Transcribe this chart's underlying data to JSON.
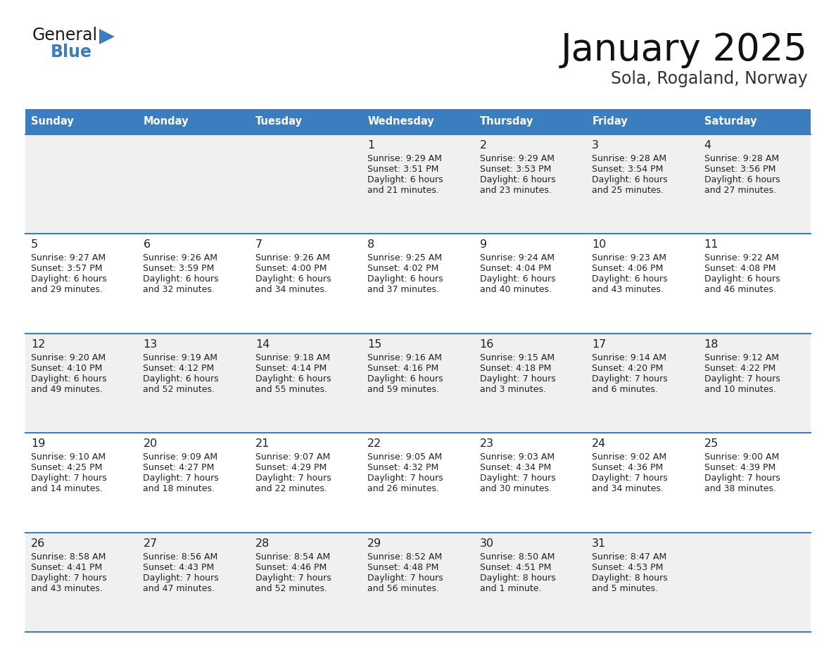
{
  "title": "January 2025",
  "subtitle": "Sola, Rogaland, Norway",
  "header_color": "#3a7ebf",
  "header_text_color": "#ffffff",
  "cell_bg_even": "#f0f0f0",
  "cell_bg_odd": "#ffffff",
  "separator_color": "#3a7ebf",
  "text_color": "#222222",
  "day_names": [
    "Sunday",
    "Monday",
    "Tuesday",
    "Wednesday",
    "Thursday",
    "Friday",
    "Saturday"
  ],
  "days": [
    {
      "day": 1,
      "col": 3,
      "row": 0,
      "sunrise": "9:29 AM",
      "sunset": "3:51 PM",
      "daylight": "6 hours",
      "daylight2": "and 21 minutes."
    },
    {
      "day": 2,
      "col": 4,
      "row": 0,
      "sunrise": "9:29 AM",
      "sunset": "3:53 PM",
      "daylight": "6 hours",
      "daylight2": "and 23 minutes."
    },
    {
      "day": 3,
      "col": 5,
      "row": 0,
      "sunrise": "9:28 AM",
      "sunset": "3:54 PM",
      "daylight": "6 hours",
      "daylight2": "and 25 minutes."
    },
    {
      "day": 4,
      "col": 6,
      "row": 0,
      "sunrise": "9:28 AM",
      "sunset": "3:56 PM",
      "daylight": "6 hours",
      "daylight2": "and 27 minutes."
    },
    {
      "day": 5,
      "col": 0,
      "row": 1,
      "sunrise": "9:27 AM",
      "sunset": "3:57 PM",
      "daylight": "6 hours",
      "daylight2": "and 29 minutes."
    },
    {
      "day": 6,
      "col": 1,
      "row": 1,
      "sunrise": "9:26 AM",
      "sunset": "3:59 PM",
      "daylight": "6 hours",
      "daylight2": "and 32 minutes."
    },
    {
      "day": 7,
      "col": 2,
      "row": 1,
      "sunrise": "9:26 AM",
      "sunset": "4:00 PM",
      "daylight": "6 hours",
      "daylight2": "and 34 minutes."
    },
    {
      "day": 8,
      "col": 3,
      "row": 1,
      "sunrise": "9:25 AM",
      "sunset": "4:02 PM",
      "daylight": "6 hours",
      "daylight2": "and 37 minutes."
    },
    {
      "day": 9,
      "col": 4,
      "row": 1,
      "sunrise": "9:24 AM",
      "sunset": "4:04 PM",
      "daylight": "6 hours",
      "daylight2": "and 40 minutes."
    },
    {
      "day": 10,
      "col": 5,
      "row": 1,
      "sunrise": "9:23 AM",
      "sunset": "4:06 PM",
      "daylight": "6 hours",
      "daylight2": "and 43 minutes."
    },
    {
      "day": 11,
      "col": 6,
      "row": 1,
      "sunrise": "9:22 AM",
      "sunset": "4:08 PM",
      "daylight": "6 hours",
      "daylight2": "and 46 minutes."
    },
    {
      "day": 12,
      "col": 0,
      "row": 2,
      "sunrise": "9:20 AM",
      "sunset": "4:10 PM",
      "daylight": "6 hours",
      "daylight2": "and 49 minutes."
    },
    {
      "day": 13,
      "col": 1,
      "row": 2,
      "sunrise": "9:19 AM",
      "sunset": "4:12 PM",
      "daylight": "6 hours",
      "daylight2": "and 52 minutes."
    },
    {
      "day": 14,
      "col": 2,
      "row": 2,
      "sunrise": "9:18 AM",
      "sunset": "4:14 PM",
      "daylight": "6 hours",
      "daylight2": "and 55 minutes."
    },
    {
      "day": 15,
      "col": 3,
      "row": 2,
      "sunrise": "9:16 AM",
      "sunset": "4:16 PM",
      "daylight": "6 hours",
      "daylight2": "and 59 minutes."
    },
    {
      "day": 16,
      "col": 4,
      "row": 2,
      "sunrise": "9:15 AM",
      "sunset": "4:18 PM",
      "daylight": "7 hours",
      "daylight2": "and 3 minutes."
    },
    {
      "day": 17,
      "col": 5,
      "row": 2,
      "sunrise": "9:14 AM",
      "sunset": "4:20 PM",
      "daylight": "7 hours",
      "daylight2": "and 6 minutes."
    },
    {
      "day": 18,
      "col": 6,
      "row": 2,
      "sunrise": "9:12 AM",
      "sunset": "4:22 PM",
      "daylight": "7 hours",
      "daylight2": "and 10 minutes."
    },
    {
      "day": 19,
      "col": 0,
      "row": 3,
      "sunrise": "9:10 AM",
      "sunset": "4:25 PM",
      "daylight": "7 hours",
      "daylight2": "and 14 minutes."
    },
    {
      "day": 20,
      "col": 1,
      "row": 3,
      "sunrise": "9:09 AM",
      "sunset": "4:27 PM",
      "daylight": "7 hours",
      "daylight2": "and 18 minutes."
    },
    {
      "day": 21,
      "col": 2,
      "row": 3,
      "sunrise": "9:07 AM",
      "sunset": "4:29 PM",
      "daylight": "7 hours",
      "daylight2": "and 22 minutes."
    },
    {
      "day": 22,
      "col": 3,
      "row": 3,
      "sunrise": "9:05 AM",
      "sunset": "4:32 PM",
      "daylight": "7 hours",
      "daylight2": "and 26 minutes."
    },
    {
      "day": 23,
      "col": 4,
      "row": 3,
      "sunrise": "9:03 AM",
      "sunset": "4:34 PM",
      "daylight": "7 hours",
      "daylight2": "and 30 minutes."
    },
    {
      "day": 24,
      "col": 5,
      "row": 3,
      "sunrise": "9:02 AM",
      "sunset": "4:36 PM",
      "daylight": "7 hours",
      "daylight2": "and 34 minutes."
    },
    {
      "day": 25,
      "col": 6,
      "row": 3,
      "sunrise": "9:00 AM",
      "sunset": "4:39 PM",
      "daylight": "7 hours",
      "daylight2": "and 38 minutes."
    },
    {
      "day": 26,
      "col": 0,
      "row": 4,
      "sunrise": "8:58 AM",
      "sunset": "4:41 PM",
      "daylight": "7 hours",
      "daylight2": "and 43 minutes."
    },
    {
      "day": 27,
      "col": 1,
      "row": 4,
      "sunrise": "8:56 AM",
      "sunset": "4:43 PM",
      "daylight": "7 hours",
      "daylight2": "and 47 minutes."
    },
    {
      "day": 28,
      "col": 2,
      "row": 4,
      "sunrise": "8:54 AM",
      "sunset": "4:46 PM",
      "daylight": "7 hours",
      "daylight2": "and 52 minutes."
    },
    {
      "day": 29,
      "col": 3,
      "row": 4,
      "sunrise": "8:52 AM",
      "sunset": "4:48 PM",
      "daylight": "7 hours",
      "daylight2": "and 56 minutes."
    },
    {
      "day": 30,
      "col": 4,
      "row": 4,
      "sunrise": "8:50 AM",
      "sunset": "4:51 PM",
      "daylight": "8 hours",
      "daylight2": "and 1 minute."
    },
    {
      "day": 31,
      "col": 5,
      "row": 4,
      "sunrise": "8:47 AM",
      "sunset": "4:53 PM",
      "daylight": "8 hours",
      "daylight2": "and 5 minutes."
    }
  ]
}
